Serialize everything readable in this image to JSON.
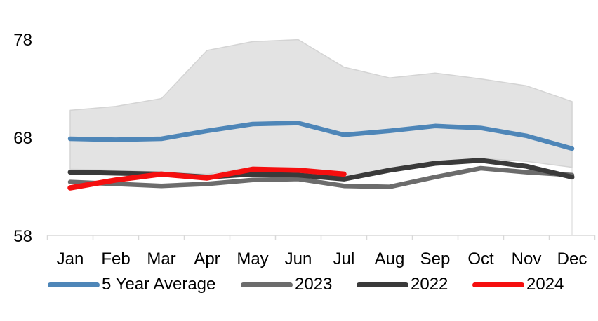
{
  "chart_data": {
    "type": "line",
    "title": "",
    "categories": [
      "Jan",
      "Feb",
      "Mar",
      "Apr",
      "May",
      "Jun",
      "Jul",
      "Aug",
      "Sep",
      "Oct",
      "Nov",
      "Dec"
    ],
    "y_ticks": [
      78,
      68,
      58
    ],
    "ylim": [
      58,
      80
    ],
    "grid": false,
    "legend_position": "bottom",
    "axis_color": "#d9d9d9",
    "band": {
      "fill": "#e3e3e3",
      "stroke": "#d4d4d4",
      "top": [
        70.9,
        71.3,
        72.1,
        77.0,
        77.9,
        78.1,
        75.3,
        74.2,
        74.7,
        74.1,
        73.4,
        71.8
      ],
      "bottom": [
        64.9,
        64.8,
        64.6,
        64.4,
        65.1,
        65.0,
        64.1,
        65.0,
        65.7,
        66.0,
        65.7,
        65.1
      ]
    },
    "series": [
      {
        "name": "5 Year Average",
        "color": "#4e86b8",
        "values": [
          68.0,
          67.9,
          68.0,
          68.8,
          69.5,
          69.6,
          68.4,
          68.8,
          69.3,
          69.1,
          68.3,
          67.0
        ]
      },
      {
        "name": "2023",
        "color": "#6c6c6c",
        "values": [
          63.6,
          63.4,
          63.2,
          63.4,
          63.8,
          63.9,
          63.2,
          63.1,
          64.1,
          65.0,
          64.6,
          64.3
        ]
      },
      {
        "name": "2022",
        "color": "#3a3a3a",
        "values": [
          64.6,
          64.5,
          64.4,
          64.1,
          64.4,
          64.3,
          63.9,
          64.8,
          65.5,
          65.8,
          65.2,
          64.1
        ]
      },
      {
        "name": "2024",
        "color": "#f50f0f",
        "values": [
          63.0,
          63.8,
          64.4,
          64.0,
          64.9,
          64.8,
          64.4,
          null,
          null,
          null,
          null,
          null
        ]
      }
    ]
  }
}
